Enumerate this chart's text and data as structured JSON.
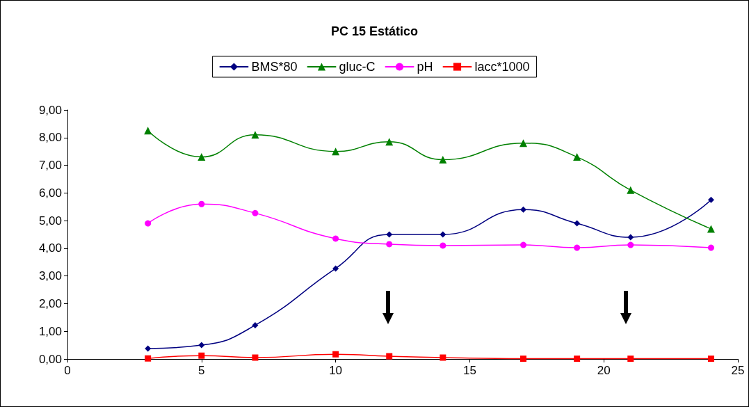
{
  "chart_data": {
    "type": "line",
    "title": "PC 15 Estático",
    "x": [
      3,
      5,
      7,
      10,
      12,
      14,
      17,
      19,
      21,
      24
    ],
    "xlim": [
      0,
      25
    ],
    "xticks": [
      0,
      5,
      10,
      15,
      20,
      25
    ],
    "ylim": [
      0,
      9
    ],
    "yticks": [
      {
        "value": 0,
        "label": "0,00"
      },
      {
        "value": 1,
        "label": "1,00"
      },
      {
        "value": 2,
        "label": "2,00"
      },
      {
        "value": 3,
        "label": "3,00"
      },
      {
        "value": 4,
        "label": "4,00"
      },
      {
        "value": 5,
        "label": "5,00"
      },
      {
        "value": 6,
        "label": "6,00"
      },
      {
        "value": 7,
        "label": "7,00"
      },
      {
        "value": 8,
        "label": "8,00"
      },
      {
        "value": 9,
        "label": "9,00"
      }
    ],
    "legend": "top",
    "line_style": "solid",
    "series": [
      {
        "name": "BMS*80",
        "color": "#000080",
        "marker": "diamond",
        "values": [
          0.38,
          0.5,
          1.22,
          3.27,
          4.5,
          4.5,
          5.4,
          4.9,
          4.4,
          5.75
        ]
      },
      {
        "name": "gluc-C",
        "color": "#008000",
        "marker": "triangle",
        "values": [
          8.25,
          7.3,
          8.1,
          7.5,
          7.85,
          7.2,
          7.8,
          7.3,
          6.1,
          4.7
        ]
      },
      {
        "name": "pH",
        "color": "#ff00ff",
        "marker": "circle",
        "values": [
          4.9,
          5.6,
          5.27,
          4.35,
          4.15,
          4.1,
          4.12,
          4.02,
          4.12,
          4.02
        ]
      },
      {
        "name": "lacc*1000",
        "color": "#ff0000",
        "marker": "square",
        "values": [
          0.02,
          0.12,
          0.05,
          0.17,
          0.1,
          0.05,
          0.01,
          0.01,
          0.01,
          0.01
        ]
      }
    ]
  }
}
